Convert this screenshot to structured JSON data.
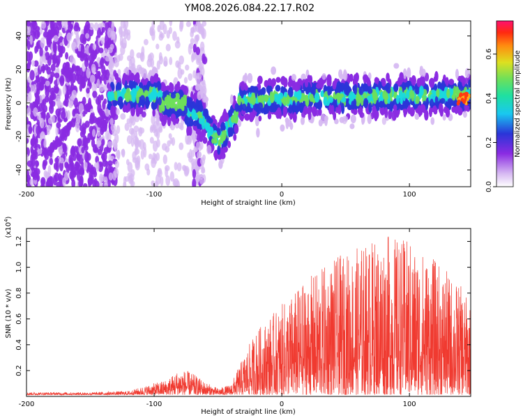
{
  "title": "YM08.2026.084.22.17.R02",
  "colors": {
    "spectrum_light": "#d6b8f2",
    "spectrum_purple": "#8a2be2",
    "spectrum_blue": "#2a35d8",
    "spectrum_cyan": "#19d9e0",
    "spectrum_green": "#6ee05a",
    "spectrum_hot": "#ff3b10",
    "snr_line": "#f03a30"
  },
  "chart_data": [
    {
      "type": "heatmap",
      "name": "spectrogram",
      "xlabel": "Height of straight line (km)",
      "ylabel": "Frequency (Hz)",
      "xlim": [
        -200,
        148
      ],
      "ylim": [
        -50,
        49
      ],
      "xticks": [
        -200,
        -100,
        0,
        100
      ],
      "yticks": [
        -40,
        -20,
        0,
        20,
        40
      ],
      "colorbar": {
        "label": "Normalized spectral amplitude",
        "range": [
          0.0,
          0.75
        ],
        "ticks": [
          "0.0",
          "0.2",
          "0.4",
          "0.6"
        ],
        "tick_values": [
          0.0,
          0.2,
          0.4,
          0.6
        ]
      },
      "features": [
        {
          "region": "x -200 to -135",
          "description": "scattered purple blobs across full frequency range",
          "amplitude": 0.15
        },
        {
          "region": "x -135 to -95",
          "frequency_center": 5,
          "amplitude": 0.3
        },
        {
          "region": "x -95 to -75",
          "frequency_center": 0,
          "amplitude": 0.4
        },
        {
          "region": "x -60 to -40",
          "frequency_center": -22,
          "amplitude": 0.25
        },
        {
          "region": "x -20 to 140",
          "frequency_center": 2,
          "amplitude": 0.35
        },
        {
          "region": "x 140 to 148",
          "frequency_center": 3,
          "amplitude": 0.7
        }
      ]
    },
    {
      "type": "line",
      "name": "snr",
      "xlabel": "Height of straight line (km)",
      "ylabel": "SNR (10 * v/v)",
      "multiplier": "(x10",
      "multiplier_exp": "4",
      "multiplier_close": ")",
      "xlim": [
        -200,
        148
      ],
      "ylim": [
        0,
        1.3
      ],
      "xticks": [
        -200,
        -100,
        0,
        100
      ],
      "yticks": [
        0.2,
        0.4,
        0.6,
        0.8,
        1.0,
        1.2
      ],
      "ytick_labels": [
        "0.2",
        "0.4",
        "0.6",
        "0.8",
        "1.0",
        "1.2"
      ],
      "envelope": {
        "x": [
          -200,
          -150,
          -120,
          -90,
          -80,
          -72,
          -60,
          -50,
          -40,
          -30,
          -20,
          -10,
          0,
          20,
          40,
          60,
          80,
          100,
          120,
          140,
          148
        ],
        "y": [
          0.02,
          0.02,
          0.03,
          0.12,
          0.2,
          0.18,
          0.1,
          0.05,
          0.08,
          0.3,
          0.5,
          0.6,
          0.7,
          0.9,
          1.05,
          1.15,
          1.25,
          1.2,
          1.05,
          0.85,
          0.7
        ]
      }
    }
  ]
}
